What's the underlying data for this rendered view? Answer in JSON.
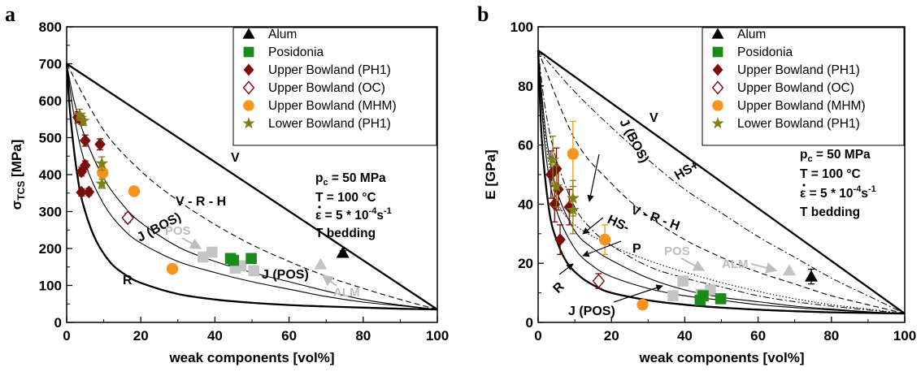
{
  "panels": [
    {
      "letter": "a",
      "xlabel": "weak components [vol%]",
      "ylabel": "σ",
      "ylabel_sub": "TCS",
      "ylabel_unit": " [MPa]",
      "xlim": [
        0,
        100
      ],
      "ylim": [
        0,
        800
      ],
      "xticks": [
        0,
        20,
        40,
        60,
        80,
        100
      ],
      "yticks": [
        0,
        100,
        200,
        300,
        400,
        500,
        600,
        700,
        800
      ],
      "conditions": {
        "pc": "p",
        "pc_sub": "c",
        "pc_val": " = 50 MPa",
        "T": "T  = 100 °C",
        "eps": "ε",
        "eps_val": "  = 5 * 10",
        "eps_exp": "-4",
        "eps_unit": "s",
        "eps_unit_exp": "-1",
        "bedding": "T bedding"
      },
      "models": {
        "V": "V",
        "VRH": "V - R - H",
        "R": "R",
        "JBOS": "J (BOS)",
        "JPOS": "J (POS)"
      },
      "annotations": {
        "POS": "POS",
        "ALM": "ALM"
      }
    },
    {
      "letter": "b",
      "xlabel": "weak components [vol%]",
      "ylabel": "E [GPa]",
      "xlim": [
        0,
        100
      ],
      "ylim": [
        0,
        100
      ],
      "xticks": [
        0,
        20,
        40,
        60,
        80,
        100
      ],
      "yticks": [
        0,
        20,
        40,
        60,
        80,
        100
      ],
      "conditions": {
        "pc": "p",
        "pc_sub": "c",
        "pc_val": " = 50 MPa",
        "T": "T  = 100 °C",
        "eps": "ε",
        "eps_val": "  = 5 * 10",
        "eps_exp": "-4",
        "eps_unit": "s",
        "eps_unit_exp": "-1",
        "bedding": "T bedding"
      },
      "models": {
        "V": "V",
        "HSp": "HS+",
        "VRH": "V - R - H",
        "HSm": "HS-",
        "P": "P",
        "R": "R",
        "JBOS": "J (BOS)",
        "JPOS": "J (POS)"
      },
      "annotations": {
        "POS": "POS",
        "ALM": "ALM"
      }
    }
  ],
  "legend": [
    {
      "key": "alum",
      "label": "Alum",
      "marker": "triangle",
      "color": "#000000"
    },
    {
      "key": "pos",
      "label": "Posidonia",
      "marker": "square",
      "color": "#1a8a1a"
    },
    {
      "key": "ubph1",
      "label": "Upper Bowland (PH1)",
      "marker": "diamond",
      "color": "#7b0d0d"
    },
    {
      "key": "uboc",
      "label": "Upper Bowland (OC)",
      "marker": "diamond-open",
      "color": "#7b0d0d"
    },
    {
      "key": "ubmhm",
      "label": "Upper Bowland (MHM)",
      "marker": "circle",
      "color": "#f7941d"
    },
    {
      "key": "lbph1",
      "label": "Lower Bowland (PH1)",
      "marker": "star",
      "color": "#7f7f18"
    }
  ],
  "colors": {
    "gray_markers": "#c4c4c4",
    "gray_text": "#bdbdbd"
  },
  "chart_data": [
    {
      "type": "scatter",
      "panel": "a",
      "ylabel": "σTCS [MPa]",
      "xlabel": "weak components [vol%]",
      "xlim": [
        0,
        100
      ],
      "ylim": [
        0,
        800
      ],
      "grid": false,
      "legend_position": "top-right",
      "series": [
        {
          "name": "Alum",
          "points": [
            {
              "x": 74.5,
              "y": 188,
              "err": 6
            }
          ]
        },
        {
          "name": "Posidonia",
          "points": [
            {
              "x": 44.2,
              "y": 173,
              "err": 8
            },
            {
              "x": 45,
              "y": 168,
              "err": 8
            },
            {
              "x": 49.8,
              "y": 173,
              "err": 7
            }
          ]
        },
        {
          "name": "Upper Bowland (PH1)",
          "points": [
            {
              "x": 3,
              "y": 555,
              "err": 15
            },
            {
              "x": 4,
              "y": 548,
              "err": 12
            },
            {
              "x": 5,
              "y": 492,
              "err": 15
            },
            {
              "x": 5,
              "y": 425,
              "err": 12
            },
            {
              "x": 4,
              "y": 408,
              "err": 12
            },
            {
              "x": 9,
              "y": 482,
              "err": 15
            },
            {
              "x": 4,
              "y": 352,
              "err": 10
            },
            {
              "x": 6,
              "y": 353,
              "err": 10
            }
          ]
        },
        {
          "name": "Upper Bowland (OC)",
          "points": [
            {
              "x": 16.5,
              "y": 283,
              "err": 12
            }
          ]
        },
        {
          "name": "Upper Bowland (MHM)",
          "points": [
            {
              "x": 9.7,
              "y": 405,
              "err": 15
            },
            {
              "x": 18.2,
              "y": 355,
              "err": 10
            },
            {
              "x": 28.5,
              "y": 145,
              "err": 5
            }
          ]
        },
        {
          "name": "Lower Bowland (PH1)",
          "points": [
            {
              "x": 3.5,
              "y": 562,
              "err": 15
            },
            {
              "x": 4.5,
              "y": 545,
              "err": 12
            },
            {
              "x": 9.5,
              "y": 430,
              "err": 18
            },
            {
              "x": 9.5,
              "y": 375,
              "err": 12
            }
          ]
        },
        {
          "name": "gray",
          "points": [
            {
              "x": 36.8,
              "y": 177
            },
            {
              "x": 39.2,
              "y": 190
            },
            {
              "x": 45.5,
              "y": 147
            },
            {
              "x": 47,
              "y": 153
            },
            {
              "x": 50.5,
              "y": 140
            },
            {
              "x": 68.5,
              "y": 157
            }
          ]
        }
      ],
      "curves": {
        "V": {
          "x": [
            0,
            100
          ],
          "y": [
            700,
            35
          ]
        },
        "VRH": {
          "x": [
            0,
            10,
            20,
            30,
            40,
            50,
            60,
            70,
            80,
            90,
            100
          ],
          "y": [
            700,
            520,
            410,
            330,
            265,
            210,
            165,
            125,
            92,
            62,
            35
          ]
        },
        "JBOS": {
          "x": [
            0,
            2,
            5,
            10,
            15,
            20,
            30,
            40,
            50,
            60,
            70,
            80,
            90,
            100
          ],
          "y": [
            700,
            600,
            500,
            390,
            320,
            270,
            205,
            165,
            135,
            110,
            85,
            62,
            47,
            35
          ]
        },
        "JPOS": {
          "x": [
            0,
            2,
            5,
            10,
            15,
            20,
            30,
            40,
            50,
            60,
            70,
            80,
            90,
            100
          ],
          "y": [
            700,
            560,
            430,
            320,
            255,
            215,
            165,
            135,
            110,
            90,
            70,
            55,
            45,
            35
          ]
        },
        "R": {
          "x": [
            0,
            1,
            3,
            5,
            8,
            12,
            16,
            20,
            30,
            40,
            50,
            60,
            70,
            80,
            90,
            100
          ],
          "y": [
            700,
            560,
            390,
            300,
            220,
            160,
            128,
            107,
            77,
            62,
            53,
            47,
            43,
            40,
            37,
            35
          ]
        }
      }
    },
    {
      "type": "scatter",
      "panel": "b",
      "ylabel": "E [GPa]",
      "xlabel": "weak components [vol%]",
      "xlim": [
        0,
        100
      ],
      "ylim": [
        0,
        100
      ],
      "grid": false,
      "legend_position": "top-right",
      "series": [
        {
          "name": "Alum",
          "points": [
            {
              "x": 74.5,
              "y": 15.5,
              "err": 2.5
            }
          ]
        },
        {
          "name": "Posidonia",
          "points": [
            {
              "x": 44.2,
              "y": 7.5,
              "err": 1.5
            },
            {
              "x": 45,
              "y": 9,
              "err": 1.5
            },
            {
              "x": 49.8,
              "y": 8,
              "err": 1.5
            }
          ]
        },
        {
          "name": "Upper Bowland (PH1)",
          "points": [
            {
              "x": 3.5,
              "y": 50,
              "err": 8
            },
            {
              "x": 5,
              "y": 52,
              "err": 7
            },
            {
              "x": 5.5,
              "y": 45,
              "err": 7
            },
            {
              "x": 4.5,
              "y": 40,
              "err": 6
            },
            {
              "x": 6,
              "y": 28,
              "err": 5
            },
            {
              "x": 8.5,
              "y": 39,
              "err": 6
            }
          ]
        },
        {
          "name": "Upper Bowland (OC)",
          "points": [
            {
              "x": 16.5,
              "y": 14,
              "err": 2.5
            }
          ]
        },
        {
          "name": "Upper Bowland (MHM)",
          "points": [
            {
              "x": 9.5,
              "y": 57,
              "err": 11
            },
            {
              "x": 18.2,
              "y": 28,
              "err": 5
            },
            {
              "x": 28.5,
              "y": 6,
              "err": 1
            }
          ]
        },
        {
          "name": "Lower Bowland (PH1)",
          "points": [
            {
              "x": 4,
              "y": 55,
              "err": 8
            },
            {
              "x": 5,
              "y": 46,
              "err": 7
            },
            {
              "x": 9.5,
              "y": 38,
              "err": 8
            },
            {
              "x": 9.5,
              "y": 42,
              "err": 6
            }
          ]
        },
        {
          "name": "gray",
          "points": [
            {
              "x": 36.8,
              "y": 9
            },
            {
              "x": 39.5,
              "y": 14
            },
            {
              "x": 44.5,
              "y": 9.5
            },
            {
              "x": 47,
              "y": 11
            },
            {
              "x": 68.5,
              "y": 17.5
            }
          ]
        }
      ],
      "curves": {
        "V": {
          "x": [
            0,
            100
          ],
          "y": [
            92,
            3
          ]
        },
        "HSp": {
          "x": [
            0,
            10,
            20,
            30,
            40,
            50,
            60,
            70,
            80,
            90,
            100
          ],
          "y": [
            92,
            78,
            66,
            55,
            45,
            37,
            29,
            22,
            15,
            9,
            3
          ]
        },
        "VRH": {
          "x": [
            0,
            10,
            20,
            30,
            40,
            50,
            60,
            70,
            80,
            90,
            100
          ],
          "y": [
            92,
            62,
            47,
            36,
            28,
            22,
            17,
            13,
            9,
            6,
            3
          ]
        },
        "HSm": {
          "x": [
            0,
            2,
            5,
            10,
            15,
            20,
            30,
            40,
            50,
            60,
            70,
            80,
            90,
            100
          ],
          "y": [
            92,
            72,
            55,
            39,
            31,
            26,
            19,
            15,
            12,
            9,
            7,
            5.5,
            4.2,
            3
          ]
        },
        "P": {
          "x": [
            0,
            2,
            5,
            10,
            20,
            30,
            40,
            50,
            60,
            70,
            80,
            90,
            100
          ],
          "y": [
            92,
            62,
            42,
            33,
            26,
            21,
            17,
            13.5,
            10.5,
            8,
            6,
            4.5,
            3
          ]
        },
        "JBOS": {
          "x": [
            0,
            2,
            5,
            10,
            15,
            20,
            30,
            40,
            50,
            60,
            70,
            80,
            90,
            100
          ],
          "y": [
            92,
            65,
            45,
            31,
            25,
            21,
            15,
            11,
            8.5,
            7,
            5.5,
            4.5,
            3.6,
            3
          ]
        },
        "JPOS": {
          "x": [
            0,
            2,
            5,
            10,
            15,
            20,
            30,
            40,
            50,
            60,
            70,
            80,
            90,
            100
          ],
          "y": [
            92,
            58,
            38,
            25,
            19,
            15.5,
            11.5,
            9,
            7.5,
            6,
            5,
            4.2,
            3.5,
            3
          ]
        },
        "R": {
          "x": [
            0,
            1,
            3,
            5,
            8,
            12,
            16,
            20,
            30,
            40,
            50,
            60,
            70,
            80,
            90,
            100
          ],
          "y": [
            92,
            62,
            38,
            28,
            20,
            15,
            12,
            10,
            7.5,
            6,
            5,
            4.3,
            3.8,
            3.4,
            3.2,
            3
          ]
        }
      }
    }
  ]
}
